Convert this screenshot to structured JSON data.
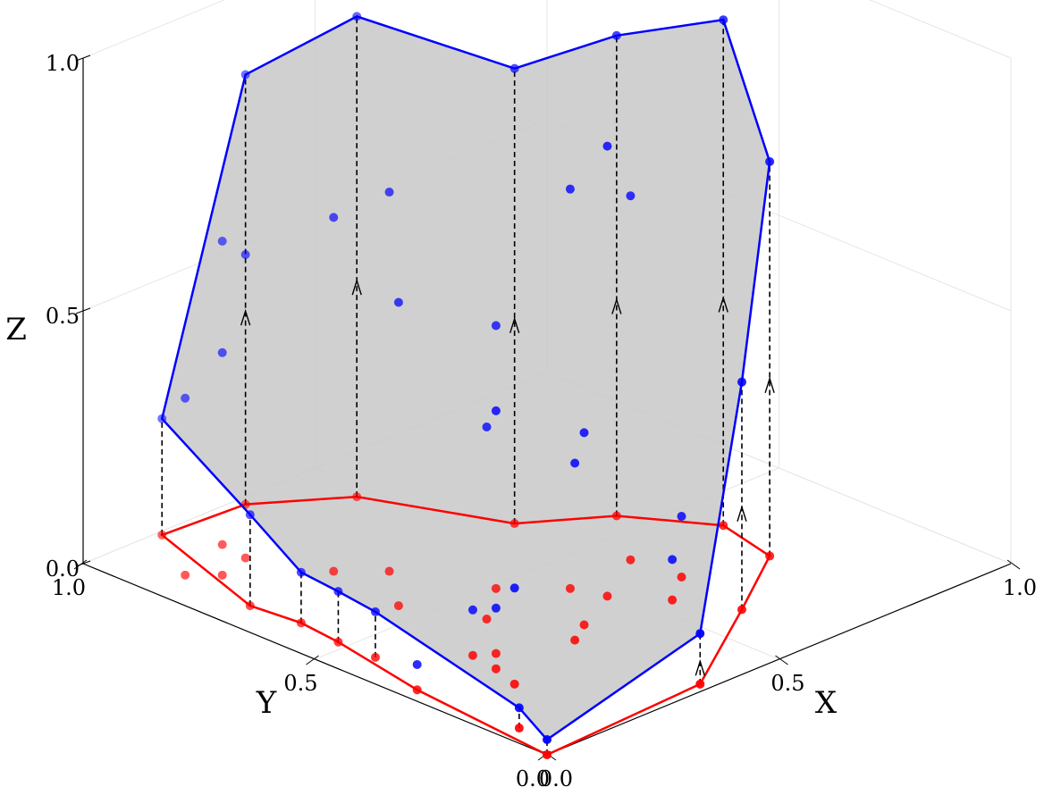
{
  "chart_data": {
    "type": "scatter",
    "projection": "3d",
    "title": "",
    "xlabel": "X",
    "ylabel": "Y",
    "zlabel": "Z",
    "xlim": [
      0,
      1
    ],
    "ylim": [
      0,
      1
    ],
    "zlim": [
      0,
      1
    ],
    "x_tick_labels": [
      "0.0",
      "0.5",
      "1.0"
    ],
    "y_tick_labels": [
      "0.0",
      "0.5",
      "1.0"
    ],
    "z_tick_labels": [
      "0.0",
      "0.5",
      "1.0"
    ],
    "grid": true,
    "colors": {
      "lower_points": "#ff0000",
      "upper_points": "#0000ff",
      "lower_hull": "#ff0000",
      "upper_hull": "#0000ff",
      "surface_fill": "#c8c8c8",
      "lift_lines": "#000000"
    },
    "points": [
      {
        "x": 0.0,
        "y": 0.0,
        "z": 0.03
      },
      {
        "x": 0.04,
        "y": 0.1,
        "z": 0.04
      },
      {
        "x": 0.03,
        "y": 0.31,
        "z": 0.05
      },
      {
        "x": 0.07,
        "y": 0.44,
        "z": 0.09
      },
      {
        "x": 0.07,
        "y": 0.52,
        "z": 0.1
      },
      {
        "x": 0.08,
        "y": 0.61,
        "z": 0.1
      },
      {
        "x": 0.07,
        "y": 0.71,
        "z": 0.18
      },
      {
        "x": 0.16,
        "y": 0.99,
        "z": 0.23
      },
      {
        "x": 0.33,
        "y": 0.98,
        "z": 0.85
      },
      {
        "x": 0.47,
        "y": 0.88,
        "z": 0.95
      },
      {
        "x": 0.57,
        "y": 0.64,
        "z": 0.9
      },
      {
        "x": 0.7,
        "y": 0.55,
        "z": 0.95
      },
      {
        "x": 0.79,
        "y": 0.41,
        "z": 1.0
      },
      {
        "x": 0.76,
        "y": 0.28,
        "z": 0.78
      },
      {
        "x": 0.59,
        "y": 0.17,
        "z": 0.45
      },
      {
        "x": 0.35,
        "y": 0.02,
        "z": 0.1
      },
      {
        "x": 0.21,
        "y": 0.32,
        "z": 0.48
      },
      {
        "x": 0.29,
        "y": 0.42,
        "z": 0.38
      },
      {
        "x": 0.38,
        "y": 0.49,
        "z": 0.52
      },
      {
        "x": 0.23,
        "y": 0.55,
        "z": 0.6
      },
      {
        "x": 0.31,
        "y": 0.65,
        "z": 0.75
      },
      {
        "x": 0.25,
        "y": 0.71,
        "z": 0.7
      },
      {
        "x": 0.46,
        "y": 0.41,
        "z": 0.79
      },
      {
        "x": 0.48,
        "y": 0.35,
        "z": 0.89
      },
      {
        "x": 0.6,
        "y": 0.42,
        "z": 0.72
      },
      {
        "x": 0.19,
        "y": 0.84,
        "z": 0.6
      },
      {
        "x": 0.12,
        "y": 0.82,
        "z": 0.44
      },
      {
        "x": 0.15,
        "y": 0.22,
        "z": 0.19
      },
      {
        "x": 0.17,
        "y": 0.28,
        "z": 0.12
      },
      {
        "x": 0.18,
        "y": 0.34,
        "z": 0.09
      },
      {
        "x": 0.33,
        "y": 0.27,
        "z": 0.35
      },
      {
        "x": 0.38,
        "y": 0.3,
        "z": 0.38
      },
      {
        "x": 0.54,
        "y": 0.27,
        "z": 0.08
      },
      {
        "x": 0.61,
        "y": 0.32,
        "z": 0.12
      },
      {
        "x": 0.2,
        "y": 0.9,
        "z": 0.6
      },
      {
        "x": 0.08,
        "y": 0.86,
        "z": 0.35
      }
    ],
    "lower_hull": [
      [
        0.0,
        0.0
      ],
      [
        0.35,
        0.02
      ],
      [
        0.59,
        0.17
      ],
      [
        0.76,
        0.28
      ],
      [
        0.79,
        0.41
      ],
      [
        0.7,
        0.55
      ],
      [
        0.57,
        0.64
      ],
      [
        0.47,
        0.88
      ],
      [
        0.33,
        0.98
      ],
      [
        0.16,
        0.99
      ],
      [
        0.07,
        0.71
      ],
      [
        0.08,
        0.61
      ],
      [
        0.07,
        0.52
      ],
      [
        0.03,
        0.31
      ],
      [
        0.0,
        0.0
      ]
    ],
    "upper_hull": [
      0,
      15,
      14,
      13,
      12,
      11,
      10,
      9,
      8,
      7,
      6,
      5,
      4,
      3,
      1,
      0
    ],
    "lifted_vertices": [
      7,
      8,
      9,
      10,
      11,
      12,
      13,
      14,
      15,
      6,
      5,
      4,
      3,
      1,
      0
    ],
    "lift_arrow_vertices": [
      8,
      9,
      10,
      11,
      12,
      13,
      14,
      15
    ]
  }
}
